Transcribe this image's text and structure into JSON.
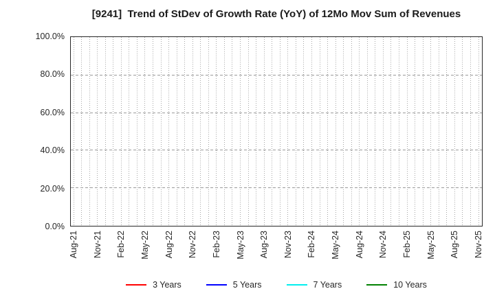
{
  "chart_data": {
    "type": "line",
    "title": "[9241]  Trend of StDev of Growth Rate (YoY) of 12Mo Mov Sum of Revenues",
    "x_tick_labels": [
      "Aug-21",
      "Nov-21",
      "Feb-22",
      "May-22",
      "Aug-22",
      "Nov-22",
      "Feb-23",
      "May-23",
      "Aug-23",
      "Nov-23",
      "Feb-24",
      "May-24",
      "Aug-24",
      "Nov-24",
      "Feb-25",
      "May-25",
      "Aug-25",
      "Nov-25"
    ],
    "x_total_gridlines": 52,
    "x_label_every": 3,
    "y_tick_labels": [
      "100.0%",
      "80.0%",
      "60.0%",
      "40.0%",
      "20.0%",
      "0.0%"
    ],
    "ylim": [
      0,
      100
    ],
    "y_gridline_values": [
      20,
      40,
      60,
      80
    ],
    "grid": true,
    "legend_position": "bottom",
    "series": [
      {
        "name": "3 Years",
        "color": "#ff0000",
        "values": []
      },
      {
        "name": "5 Years",
        "color": "#0000ff",
        "values": []
      },
      {
        "name": "7 Years",
        "color": "#00eeee",
        "values": []
      },
      {
        "name": "10 Years",
        "color": "#008000",
        "values": []
      }
    ]
  }
}
